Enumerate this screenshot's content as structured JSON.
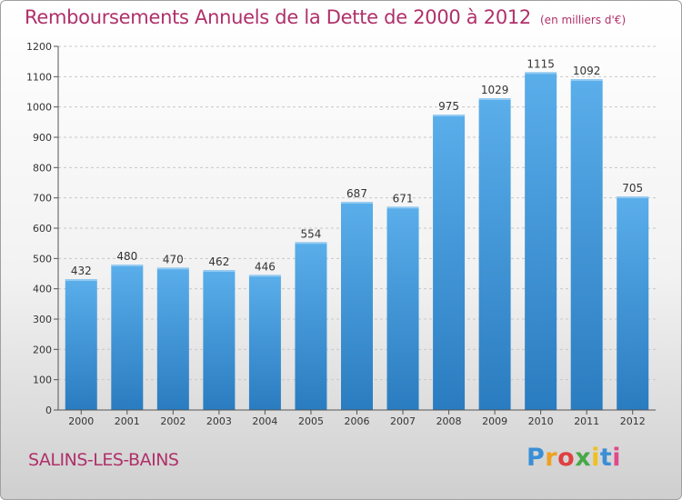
{
  "header": {
    "title": "Remboursements Annuels de la Dette de 2000 à 2012",
    "unit": "(en milliers d'€)"
  },
  "footer": {
    "city": "SALINS-LES-BAINS",
    "logo_text": "Proxiti"
  },
  "colors": {
    "title": "#b0306a",
    "bar_top": "#5aaeea",
    "bar_bottom": "#2a7cc0"
  },
  "chart_data": {
    "type": "bar",
    "categories": [
      "2000",
      "2001",
      "2002",
      "2003",
      "2004",
      "2005",
      "2006",
      "2007",
      "2008",
      "2009",
      "2010",
      "2011",
      "2012"
    ],
    "values": [
      432,
      480,
      470,
      462,
      446,
      554,
      687,
      671,
      975,
      1029,
      1115,
      1092,
      705
    ],
    "yticks": [
      0,
      100,
      200,
      300,
      400,
      500,
      600,
      700,
      800,
      900,
      1000,
      1100,
      1200
    ],
    "ylim": [
      0,
      1200
    ],
    "grid": "horizontal",
    "legend": "none"
  }
}
